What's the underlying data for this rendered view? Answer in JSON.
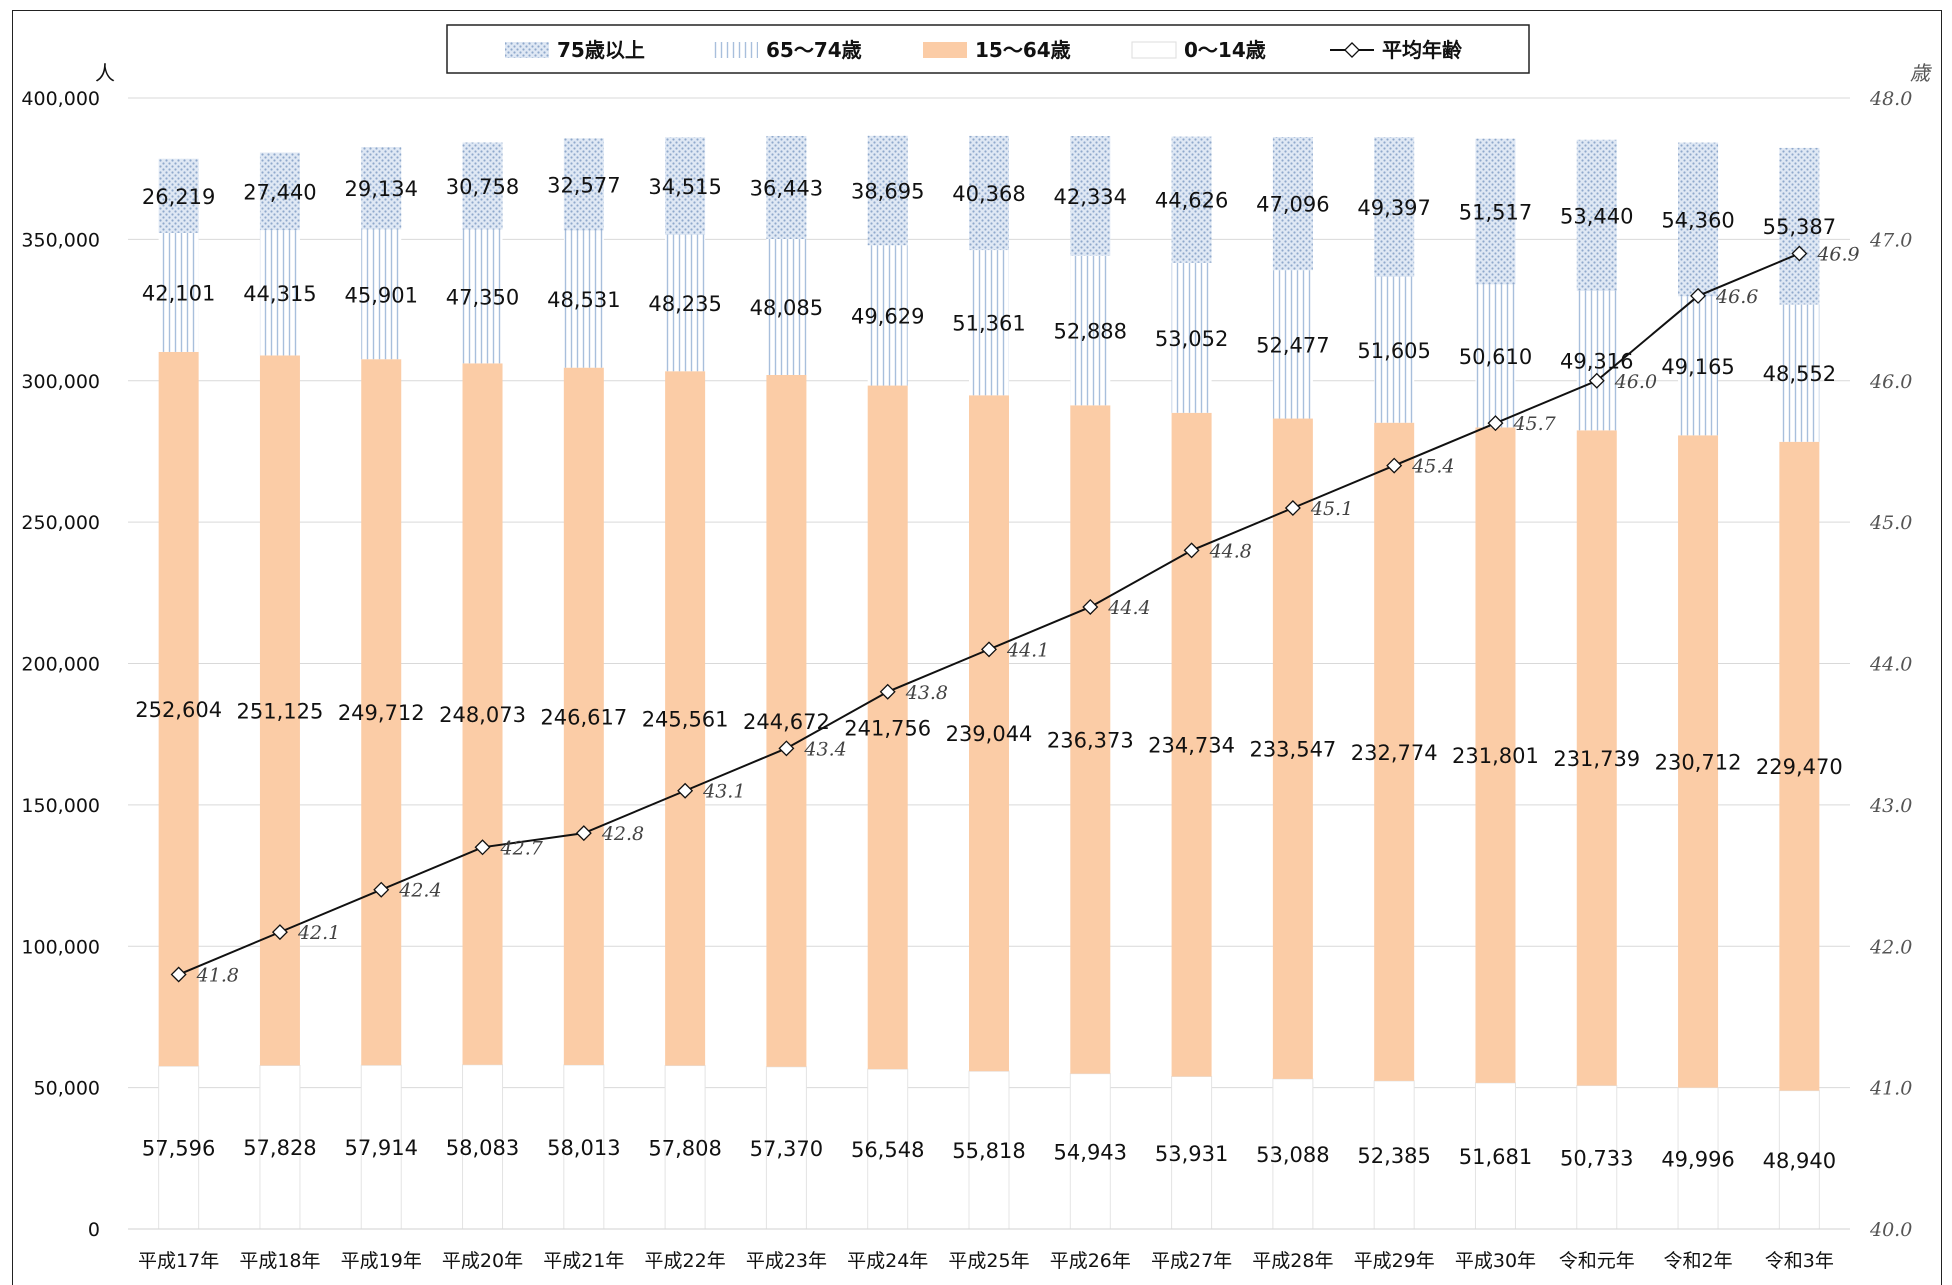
{
  "chart_data": {
    "type": "bar",
    "stacked": true,
    "categories": [
      "平成17年",
      "平成18年",
      "平成19年",
      "平成20年",
      "平成21年",
      "平成22年",
      "平成23年",
      "平成24年",
      "平成25年",
      "平成26年",
      "平成27年",
      "平成28年",
      "平成29年",
      "平成30年",
      "令和元年",
      "令和2年",
      "令和3年"
    ],
    "series": [
      {
        "name": "0～14歳",
        "color": "#ffffff",
        "pattern": "none",
        "values": [
          57596,
          57828,
          57914,
          58083,
          58013,
          57808,
          57370,
          56548,
          55818,
          54943,
          53931,
          53088,
          52385,
          51681,
          50733,
          49996,
          48940
        ]
      },
      {
        "name": "15～64歳",
        "color": "#fbcca6",
        "pattern": "solid",
        "values": [
          252604,
          251125,
          249712,
          248073,
          246617,
          245561,
          244672,
          241756,
          239044,
          236373,
          234734,
          233547,
          232774,
          231801,
          231739,
          230712,
          229470
        ]
      },
      {
        "name": "65～74歳",
        "color": "#a8bfdc",
        "pattern": "vertical-lines",
        "values": [
          42101,
          44315,
          45901,
          47350,
          48531,
          48235,
          48085,
          49629,
          51361,
          52888,
          53052,
          52477,
          51605,
          50610,
          49316,
          49165,
          48552
        ]
      },
      {
        "name": "75歳以上",
        "color": "#a8bfdc",
        "pattern": "dots",
        "values": [
          26219,
          27440,
          29134,
          30758,
          32577,
          34515,
          36443,
          38695,
          40368,
          42334,
          44626,
          47096,
          49397,
          51517,
          53440,
          54360,
          55387
        ]
      }
    ],
    "line_series": {
      "name": "平均年齢",
      "axis": "right",
      "values": [
        41.8,
        42.1,
        42.4,
        42.7,
        42.8,
        43.1,
        43.4,
        43.8,
        44.1,
        44.4,
        44.8,
        45.1,
        45.4,
        45.7,
        46.0,
        46.6,
        46.9
      ],
      "labels": [
        "41.8",
        "42.1",
        "42.4",
        "42.7",
        "42.8",
        "43.1",
        "43.4",
        "43.8",
        "44.1",
        "44.4",
        "44.8",
        "45.1",
        "45.4",
        "45.7",
        "46.0",
        "46.6",
        "46.9"
      ]
    },
    "ylim": [
      0,
      400000
    ],
    "y2lim": [
      40.0,
      48.0
    ],
    "y_ticks": [
      0,
      50000,
      100000,
      150000,
      200000,
      250000,
      300000,
      350000,
      400000
    ],
    "y_tick_labels": [
      "0",
      "50,000",
      "100,000",
      "150,000",
      "200,000",
      "250,000",
      "300,000",
      "350,000",
      "400,000"
    ],
    "y2_ticks": [
      40,
      41,
      42,
      43,
      44,
      45,
      46,
      47,
      48
    ],
    "y2_tick_labels": [
      "40.0",
      "41.0",
      "42.0",
      "43.0",
      "44.0",
      "45.0",
      "46.0",
      "47.0",
      "48.0"
    ],
    "ylabel": "人",
    "y2label": "歳",
    "grid": true,
    "legend_position": "top-center",
    "legend_order": [
      "75歳以上",
      "65～74歳",
      "15～64歳",
      "0～14歳",
      "平均年齢"
    ]
  }
}
